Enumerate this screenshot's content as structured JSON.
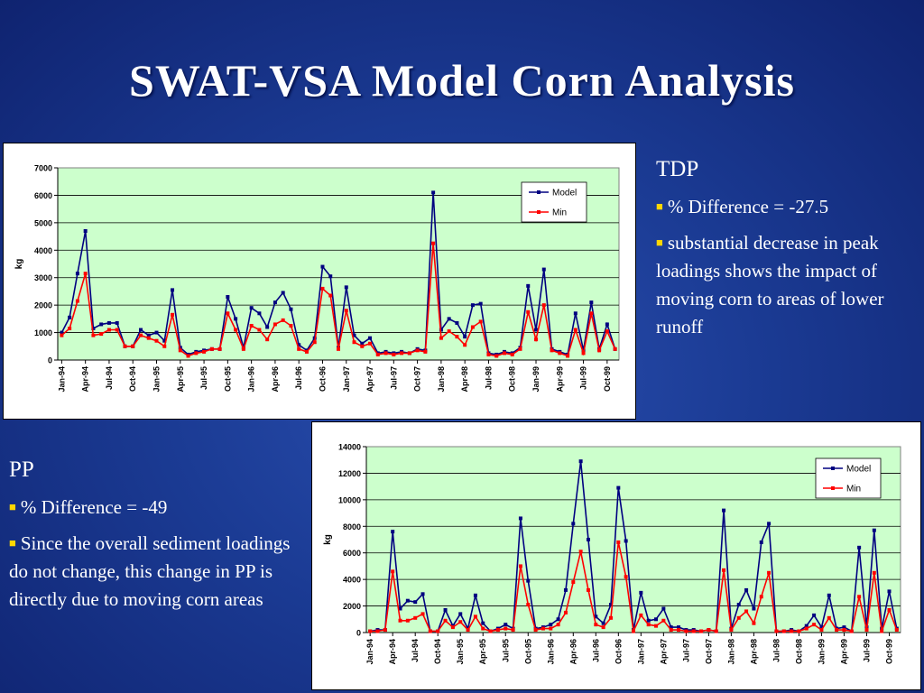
{
  "title": "SWAT-VSA Model Corn Analysis",
  "colors": {
    "model": "#000080",
    "min": "#ff0000",
    "plot_bg": "#ccffcc",
    "background": "#1b3b94"
  },
  "tdp": {
    "heading": "TDP",
    "bullet1": "%  Difference = -27.5",
    "bullet2": "substantial decrease in peak loadings shows the impact of moving corn to areas of lower runoff"
  },
  "pp": {
    "heading": "PP",
    "bullet1": "%  Difference = -49",
    "bullet2": "Since the overall sediment loadings do not change, this change in PP is directly due to moving corn areas"
  },
  "chart_data": [
    {
      "type": "line",
      "ylabel": "kg",
      "ylim": [
        0,
        7000
      ],
      "yticks": [
        0,
        1000,
        2000,
        3000,
        4000,
        5000,
        6000,
        7000
      ],
      "xtick_labels": [
        "Jan-94",
        "Apr-94",
        "Jul-94",
        "Oct-94",
        "Jan-95",
        "Apr-95",
        "Jul-95",
        "Oct-95",
        "Jan-96",
        "Apr-96",
        "Jul-96",
        "Oct-96",
        "Jan-97",
        "Apr-97",
        "Jul-97",
        "Oct-97",
        "Jan-98",
        "Apr-98",
        "Jul-98",
        "Oct-98",
        "Jan-99",
        "Apr-99",
        "Jul-99",
        "Oct-99"
      ],
      "x_months": "Jan-94 to Dec-99 (monthly)",
      "grid": true,
      "legend": "top-right",
      "series": [
        {
          "name": "Model",
          "values": [
            1000,
            1550,
            3150,
            4700,
            1150,
            1300,
            1350,
            1350,
            500,
            500,
            1100,
            900,
            1000,
            700,
            2550,
            450,
            200,
            300,
            350,
            400,
            400,
            2300,
            1500,
            450,
            1900,
            1700,
            1200,
            2100,
            2450,
            1850,
            550,
            350,
            800,
            3400,
            3050,
            450,
            2650,
            900,
            600,
            800,
            250,
            300,
            250,
            300,
            250,
            400,
            350,
            6100,
            1100,
            1500,
            1350,
            850,
            2000,
            2050,
            250,
            200,
            300,
            250,
            450,
            2700,
            1100,
            3300,
            400,
            300,
            200,
            1700,
            350,
            2100,
            400,
            1300,
            400
          ]
        },
        {
          "name": "Min",
          "values": [
            900,
            1150,
            2150,
            3150,
            900,
            950,
            1100,
            1100,
            500,
            500,
            900,
            800,
            700,
            500,
            1650,
            350,
            150,
            250,
            300,
            400,
            400,
            1700,
            1100,
            400,
            1250,
            1100,
            750,
            1300,
            1450,
            1250,
            400,
            300,
            650,
            2600,
            2350,
            400,
            1800,
            650,
            500,
            600,
            200,
            250,
            200,
            250,
            250,
            350,
            300,
            4250,
            800,
            1050,
            850,
            550,
            1200,
            1400,
            200,
            150,
            250,
            200,
            400,
            1750,
            750,
            2000,
            350,
            250,
            150,
            1100,
            250,
            1700,
            350,
            1050,
            400
          ]
        }
      ]
    },
    {
      "type": "line",
      "ylabel": "kg",
      "ylim": [
        0,
        14000
      ],
      "yticks": [
        0,
        2000,
        4000,
        6000,
        8000,
        10000,
        12000,
        14000
      ],
      "xtick_labels": [
        "Jan-94",
        "Apr-94",
        "Jul-94",
        "Oct-94",
        "Jan-95",
        "Apr-95",
        "Jul-95",
        "Oct-95",
        "Jan-96",
        "Apr-96",
        "Jul-96",
        "Oct-96",
        "Jan-97",
        "Apr-97",
        "Jul-97",
        "Oct-97",
        "Jan-98",
        "Apr-98",
        "Jul-98",
        "Oct-98",
        "Jan-99",
        "Apr-99",
        "Jul-99",
        "Oct-99"
      ],
      "x_months": "Jan-94 to Dec-99 (monthly)",
      "grid": true,
      "legend": "top-right",
      "series": [
        {
          "name": "Model",
          "values": [
            100,
            200,
            200,
            7600,
            1800,
            2400,
            2300,
            2900,
            100,
            100,
            1700,
            500,
            1400,
            300,
            2800,
            700,
            100,
            300,
            600,
            300,
            8600,
            3900,
            300,
            400,
            600,
            1000,
            3200,
            8200,
            12900,
            7000,
            1200,
            700,
            2100,
            10900,
            6900,
            200,
            3000,
            900,
            1000,
            1800,
            400,
            400,
            200,
            200,
            100,
            200,
            100,
            9200,
            300,
            2100,
            3200,
            1800,
            6800,
            8200,
            100,
            100,
            200,
            100,
            500,
            1300,
            400,
            2800,
            300,
            400,
            100,
            6400,
            400,
            7700,
            300,
            3100,
            300
          ]
        },
        {
          "name": "Min",
          "values": [
            100,
            100,
            200,
            4600,
            900,
            900,
            1100,
            1400,
            100,
            100,
            900,
            400,
            800,
            200,
            1200,
            300,
            100,
            200,
            300,
            200,
            5000,
            2100,
            200,
            300,
            300,
            600,
            1500,
            3800,
            6100,
            3200,
            600,
            400,
            1100,
            6800,
            4200,
            100,
            1300,
            600,
            500,
            900,
            200,
            200,
            100,
            100,
            100,
            200,
            100,
            4700,
            200,
            1100,
            1600,
            700,
            2700,
            4500,
            100,
            100,
            100,
            100,
            300,
            600,
            200,
            1100,
            200,
            200,
            100,
            2700,
            200,
            4500,
            100,
            1700,
            200
          ]
        }
      ]
    }
  ]
}
